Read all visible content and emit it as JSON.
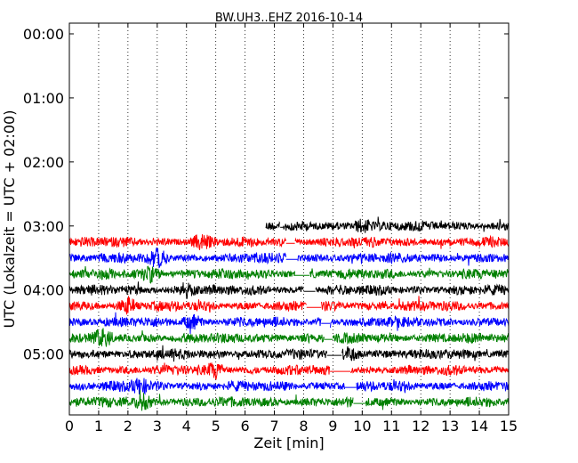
{
  "chart_data": {
    "type": "line",
    "title": "BW.UH3..EHZ 2016-10-14",
    "xlabel": "Zeit  [min]",
    "ylabel": "UTC (Lokalzeit = UTC + 02:00)",
    "xlim": [
      0,
      15
    ],
    "x_ticks": [
      0,
      1,
      2,
      3,
      4,
      5,
      6,
      7,
      8,
      9,
      10,
      11,
      12,
      13,
      14,
      15
    ],
    "x_tick_labels": [
      "0",
      "1",
      "2",
      "3",
      "4",
      "5",
      "6",
      "7",
      "8",
      "9",
      "10",
      "11",
      "12",
      "13",
      "14",
      "15"
    ],
    "y_tick_labels": [
      "00:00",
      "01:00",
      "02:00",
      "03:00",
      "04:00",
      "05:00"
    ],
    "y_tick_minutes": [
      0,
      60,
      120,
      180,
      240,
      300
    ],
    "ylim_minutes": [
      -10,
      357
    ],
    "grid": "vertical-dotted",
    "series_colors": [
      "#000000",
      "#ff0000",
      "#0000ff",
      "#008000"
    ],
    "series": [
      {
        "start_min": 180,
        "x_from": 6.7,
        "x_to": 15,
        "color": "#000000",
        "gap": [
          7.2,
          7.3
        ],
        "burst": 10.0
      },
      {
        "start_min": 195,
        "x_from": 0,
        "x_to": 15,
        "color": "#ff0000",
        "gap": [
          7.4,
          7.7
        ],
        "burst": 4.5
      },
      {
        "start_min": 210,
        "x_from": 0,
        "x_to": 15,
        "color": "#0000ff",
        "gap": [
          7.4,
          7.8
        ],
        "burst": 3.0
      },
      {
        "start_min": 225,
        "x_from": 0,
        "x_to": 15,
        "color": "#008000",
        "gap": [
          7.7,
          8.2
        ],
        "burst": 2.8
      },
      {
        "start_min": 240,
        "x_from": 0,
        "x_to": 15,
        "color": "#000000",
        "gap": [
          8.0,
          8.4
        ],
        "burst": 4.0
      },
      {
        "start_min": 255,
        "x_from": 0,
        "x_to": 15,
        "color": "#ff0000",
        "gap": [
          8.1,
          8.6
        ],
        "burst": 2.0
      },
      {
        "start_min": 270,
        "x_from": 0,
        "x_to": 15,
        "color": "#0000ff",
        "gap": [
          8.6,
          8.9
        ],
        "burst": 4.2
      },
      {
        "start_min": 285,
        "x_from": 0,
        "x_to": 15,
        "color": "#008000",
        "gap": [
          8.7,
          9.0
        ],
        "burst": 1.1
      },
      {
        "start_min": 300,
        "x_from": 0,
        "x_to": 15,
        "color": "#000000",
        "gap": [
          8.8,
          9.3
        ],
        "burst": 9.6
      },
      {
        "start_min": 315,
        "x_from": 0,
        "x_to": 15,
        "color": "#ff0000",
        "gap": [
          8.9,
          9.6
        ],
        "burst": 5.0
      },
      {
        "start_min": 330,
        "x_from": 0,
        "x_to": 15,
        "color": "#0000ff",
        "gap": [
          9.4,
          9.8
        ],
        "burst": 2.4
      },
      {
        "start_min": 345,
        "x_from": 0,
        "x_to": 15,
        "color": "#008000",
        "gap": [
          9.7,
          10.1
        ],
        "burst": 2.5
      }
    ]
  }
}
